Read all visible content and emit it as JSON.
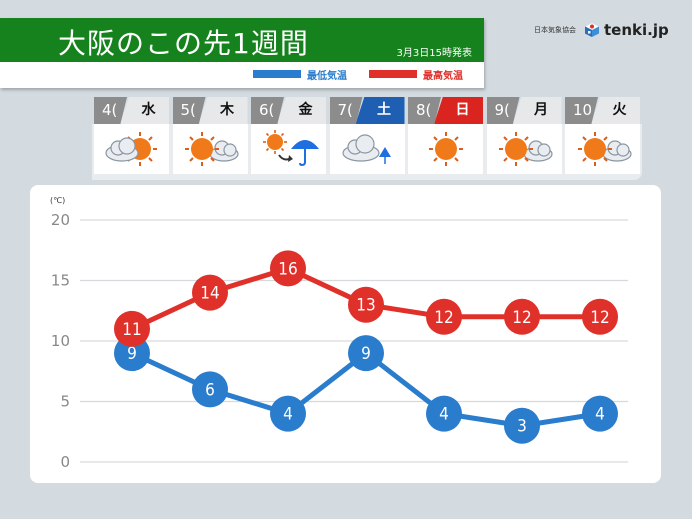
{
  "header": {
    "title": "大阪のこの先1週間",
    "issued": "3月3日15時発表",
    "legend": {
      "low_label": "最低気温",
      "high_label": "最高気温",
      "low_color": "#2a7ccc",
      "high_color": "#e0302a"
    }
  },
  "brand": {
    "org": "日本気象協会",
    "name": "tenki.jp"
  },
  "days": [
    {
      "num": "4(",
      "weekday": "水",
      "type": "weekday",
      "weather": "cloudy-then-sunny"
    },
    {
      "num": "5(",
      "weekday": "木",
      "type": "weekday",
      "weather": "sunny-then-cloudy"
    },
    {
      "num": "6(",
      "weekday": "金",
      "type": "weekday",
      "weather": "sunny-then-rain"
    },
    {
      "num": "7(",
      "weekday": "土",
      "type": "saturday",
      "weather": "cloudy-occasional-rain"
    },
    {
      "num": "8(",
      "weekday": "日",
      "type": "sunday",
      "weather": "sunny"
    },
    {
      "num": "9(",
      "weekday": "月",
      "type": "weekday",
      "weather": "sunny-then-cloudy"
    },
    {
      "num": "10",
      "weekday": "火",
      "type": "weekday",
      "weather": "sunny-then-cloudy"
    }
  ],
  "chart": {
    "unit": "(℃)",
    "yticks": [
      "20",
      "15",
      "10",
      "5",
      "0"
    ]
  },
  "chart_data": {
    "type": "line",
    "title": "大阪のこの先1週間",
    "categories": [
      "4(水)",
      "5(木)",
      "6(金)",
      "7(土)",
      "8(日)",
      "9(月)",
      "10(火)"
    ],
    "series": [
      {
        "name": "最高気温",
        "color": "#e0302a",
        "values": [
          11,
          14,
          16,
          13,
          12,
          12,
          12
        ]
      },
      {
        "name": "最低気温",
        "color": "#2a7ccc",
        "values": [
          9,
          6,
          4,
          9,
          4,
          3,
          4
        ]
      }
    ],
    "xlabel": "",
    "ylabel": "(℃)",
    "ylim": [
      0,
      20
    ],
    "yticks": [
      0,
      5,
      10,
      15,
      20
    ],
    "grid": true,
    "legend_position": "top-right"
  }
}
